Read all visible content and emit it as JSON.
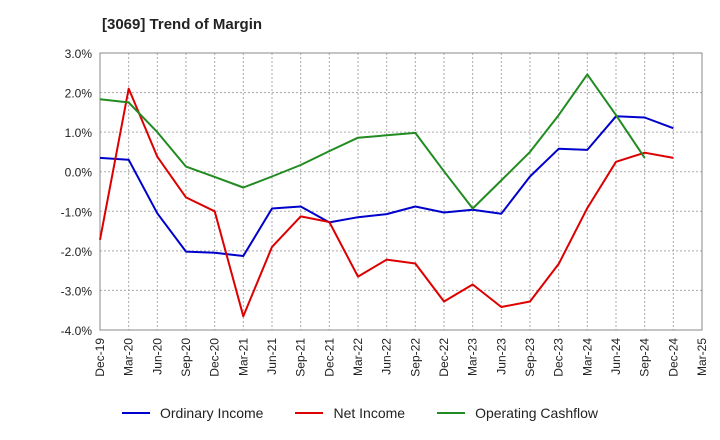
{
  "chart_data": {
    "type": "line",
    "title": "[3069]  Trend of Margin",
    "x": [
      "Dec-19",
      "Mar-20",
      "Jun-20",
      "Sep-20",
      "Dec-20",
      "Mar-21",
      "Jun-21",
      "Sep-21",
      "Dec-21",
      "Mar-22",
      "Jun-22",
      "Sep-22",
      "Dec-22",
      "Mar-23",
      "Jun-23",
      "Sep-23",
      "Dec-23",
      "Mar-24",
      "Jun-24",
      "Sep-24",
      "Dec-24",
      "Mar-25"
    ],
    "ylim": [
      -4.0,
      3.0
    ],
    "yticks": [
      3.0,
      2.0,
      1.0,
      0.0,
      -1.0,
      -2.0,
      -3.0,
      -4.0
    ],
    "ytick_labels": [
      "3.0%",
      "2.0%",
      "1.0%",
      "0.0%",
      "-1.0%",
      "-2.0%",
      "-3.0%",
      "-4.0%"
    ],
    "grid": true,
    "legend_position": "bottom",
    "series": [
      {
        "name": "Ordinary Income",
        "color": "#0000cc",
        "values": [
          0.35,
          0.3,
          -1.05,
          -2.02,
          -2.05,
          -2.13,
          -0.93,
          -0.88,
          -1.28,
          -1.15,
          -1.07,
          -0.88,
          -1.03,
          -0.96,
          -1.06,
          -0.12,
          0.58,
          0.55,
          1.4,
          1.37,
          1.1,
          null
        ]
      },
      {
        "name": "Net Income",
        "color": "#dd0000",
        "values": [
          -1.72,
          2.1,
          0.38,
          -0.65,
          -1.0,
          -3.65,
          -1.9,
          -1.13,
          -1.27,
          -2.65,
          -2.22,
          -2.32,
          -3.28,
          -2.85,
          -3.42,
          -3.28,
          -2.33,
          -0.92,
          0.25,
          0.48,
          0.35,
          null
        ]
      },
      {
        "name": "Operating Cashflow",
        "color": "#228b22",
        "values": [
          1.83,
          1.75,
          1.0,
          0.13,
          -0.13,
          -0.4,
          -0.12,
          0.17,
          0.52,
          0.86,
          0.92,
          0.98,
          0.01,
          -0.93,
          -0.22,
          0.5,
          1.43,
          2.46,
          1.43,
          0.35,
          null,
          null
        ]
      }
    ]
  }
}
